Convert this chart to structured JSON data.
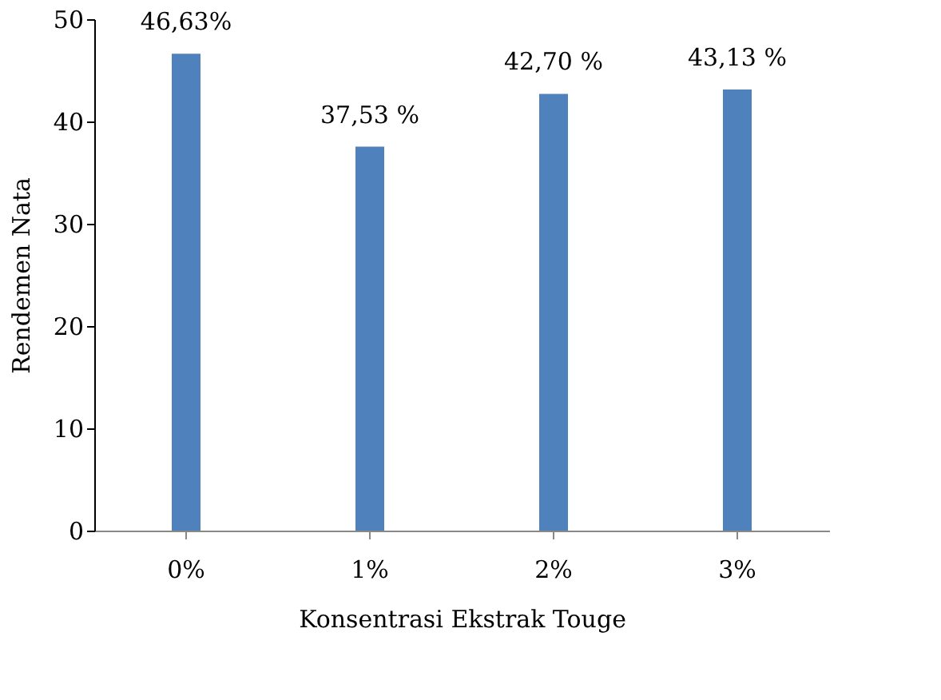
{
  "chart_data": {
    "type": "bar",
    "xlabel": "Konsentrasi Ekstrak Touge",
    "ylabel": "Rendemen Nata",
    "categories": [
      "0%",
      "1%",
      "2%",
      "3%"
    ],
    "values": [
      46.63,
      37.53,
      42.7,
      43.13
    ],
    "value_labels": [
      "46,63%",
      "37,53 %",
      "42,70 %",
      "43,13 %"
    ],
    "color": "#4f81bd",
    "ylim": [
      0,
      50
    ],
    "yticks": [
      0,
      10,
      20,
      30,
      40,
      50
    ],
    "grid": false
  }
}
